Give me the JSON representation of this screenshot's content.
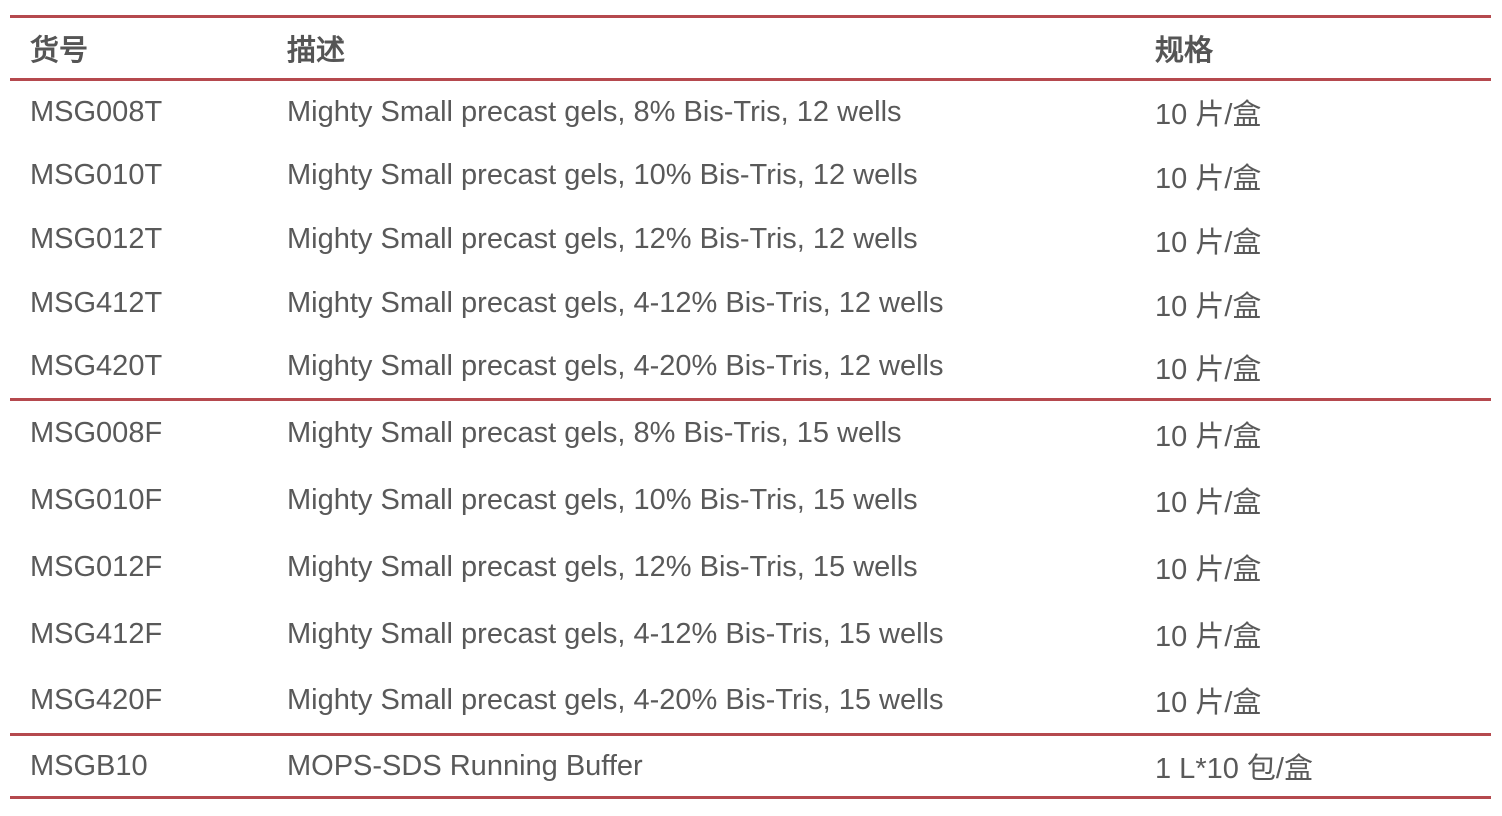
{
  "page": {
    "background_color": "#ffffff",
    "text_color": "#595959",
    "accent_color": "#b5494e"
  },
  "table": {
    "columns": [
      {
        "key": "code",
        "label": "货号"
      },
      {
        "key": "description",
        "label": "描述"
      },
      {
        "key": "spec",
        "label": "规格"
      }
    ],
    "rows": [
      {
        "code": "MSG008T",
        "description": "Mighty Small precast gels, 8% Bis-Tris, 12 wells",
        "spec": "10 片/盒"
      },
      {
        "code": "MSG010T",
        "description": "Mighty Small precast gels, 10% Bis-Tris, 12 wells",
        "spec": "10 片/盒"
      },
      {
        "code": "MSG012T",
        "description": "Mighty Small precast gels, 12% Bis-Tris, 12 wells",
        "spec": "10 片/盒"
      },
      {
        "code": "MSG412T",
        "description": "Mighty Small precast gels, 4-12% Bis-Tris, 12 wells",
        "spec": "10 片/盒"
      },
      {
        "code": "MSG420T",
        "description": "Mighty Small precast gels, 4-20% Bis-Tris, 12 wells",
        "spec": "10 片/盒"
      },
      {
        "code": "MSG008F",
        "description": "Mighty Small precast gels, 8% Bis-Tris, 15 wells",
        "spec": "10 片/盒"
      },
      {
        "code": "MSG010F",
        "description": "Mighty Small precast gels, 10% Bis-Tris, 15 wells",
        "spec": "10 片/盒"
      },
      {
        "code": "MSG012F",
        "description": "Mighty Small precast gels, 12% Bis-Tris, 15 wells",
        "spec": "10 片/盒"
      },
      {
        "code": "MSG412F",
        "description": "Mighty Small precast gels, 4-12% Bis-Tris, 15 wells",
        "spec": "10 片/盒"
      },
      {
        "code": "MSG420F",
        "description": "Mighty Small precast gels, 4-20% Bis-Tris, 15 wells",
        "spec": "10 片/盒"
      },
      {
        "code": "MSGB10",
        "description": "MOPS-SDS Running Buffer",
        "spec": "1 L*10 包/盒"
      }
    ]
  }
}
